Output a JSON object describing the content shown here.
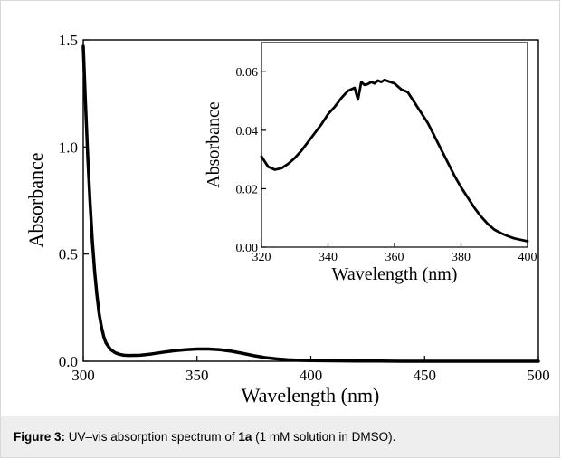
{
  "caption": {
    "label": "Figure 3:",
    "text_before": " UV–vis absorption spectrum of ",
    "compound": "1a",
    "text_after": " (1 mM solution in DMSO)."
  },
  "chart_data": [
    {
      "type": "line",
      "title": "",
      "xlabel": "Wavelength (nm)",
      "ylabel": "Absorbance",
      "xlim": [
        300,
        500
      ],
      "ylim": [
        0.0,
        1.5
      ],
      "x_ticks": [
        "300",
        "350",
        "400",
        "450",
        "500"
      ],
      "y_ticks": [
        "0.0",
        "0.5",
        "1.0",
        "1.5"
      ],
      "grid": false,
      "series": [
        {
          "x": [
            300,
            301,
            302,
            303,
            304,
            305,
            306,
            307,
            308,
            309,
            310,
            312,
            314,
            316,
            318,
            320,
            325,
            330,
            335,
            340,
            345,
            350,
            355,
            360,
            365,
            370,
            375,
            380,
            385,
            390,
            395,
            400,
            410,
            420,
            430,
            440,
            450,
            460,
            470,
            480,
            490,
            500
          ],
          "y": [
            1.47,
            1.2,
            0.95,
            0.74,
            0.56,
            0.42,
            0.31,
            0.22,
            0.16,
            0.115,
            0.085,
            0.055,
            0.04,
            0.032,
            0.028,
            0.027,
            0.028,
            0.034,
            0.042,
            0.049,
            0.054,
            0.057,
            0.057,
            0.054,
            0.047,
            0.037,
            0.026,
            0.017,
            0.011,
            0.007,
            0.005,
            0.003,
            0.002,
            0.001,
            0.001,
            0.0,
            0.0,
            0.0,
            0.0,
            0.0,
            0.0,
            0.0
          ]
        }
      ]
    },
    {
      "type": "line",
      "title": "",
      "xlabel": "Wavelength (nm)",
      "ylabel": "Absorbance",
      "xlim": [
        320,
        400
      ],
      "ylim": [
        0.0,
        0.07
      ],
      "x_ticks": [
        "320",
        "340",
        "360",
        "380",
        "400"
      ],
      "y_ticks": [
        "0.00",
        "0.02",
        "0.04",
        "0.06"
      ],
      "grid": false,
      "series": [
        {
          "x": [
            320,
            322,
            324,
            326,
            328,
            330,
            332,
            334,
            336,
            338,
            340,
            342,
            344,
            346,
            348,
            349,
            350,
            351,
            352,
            353,
            354,
            355,
            356,
            357,
            358,
            360,
            362,
            364,
            366,
            368,
            370,
            372,
            374,
            376,
            378,
            380,
            382,
            384,
            386,
            388,
            390,
            392,
            394,
            396,
            398,
            400
          ],
          "y": [
            0.031,
            0.0275,
            0.0265,
            0.027,
            0.0285,
            0.0305,
            0.033,
            0.036,
            0.039,
            0.042,
            0.0455,
            0.048,
            0.051,
            0.0535,
            0.0545,
            0.0505,
            0.0565,
            0.0555,
            0.0558,
            0.0565,
            0.056,
            0.057,
            0.0565,
            0.0572,
            0.0568,
            0.056,
            0.054,
            0.053,
            0.0495,
            0.046,
            0.0425,
            0.038,
            0.0335,
            0.029,
            0.0245,
            0.0205,
            0.017,
            0.0135,
            0.0105,
            0.008,
            0.006,
            0.0048,
            0.0038,
            0.003,
            0.0025,
            0.002
          ]
        }
      ]
    }
  ]
}
